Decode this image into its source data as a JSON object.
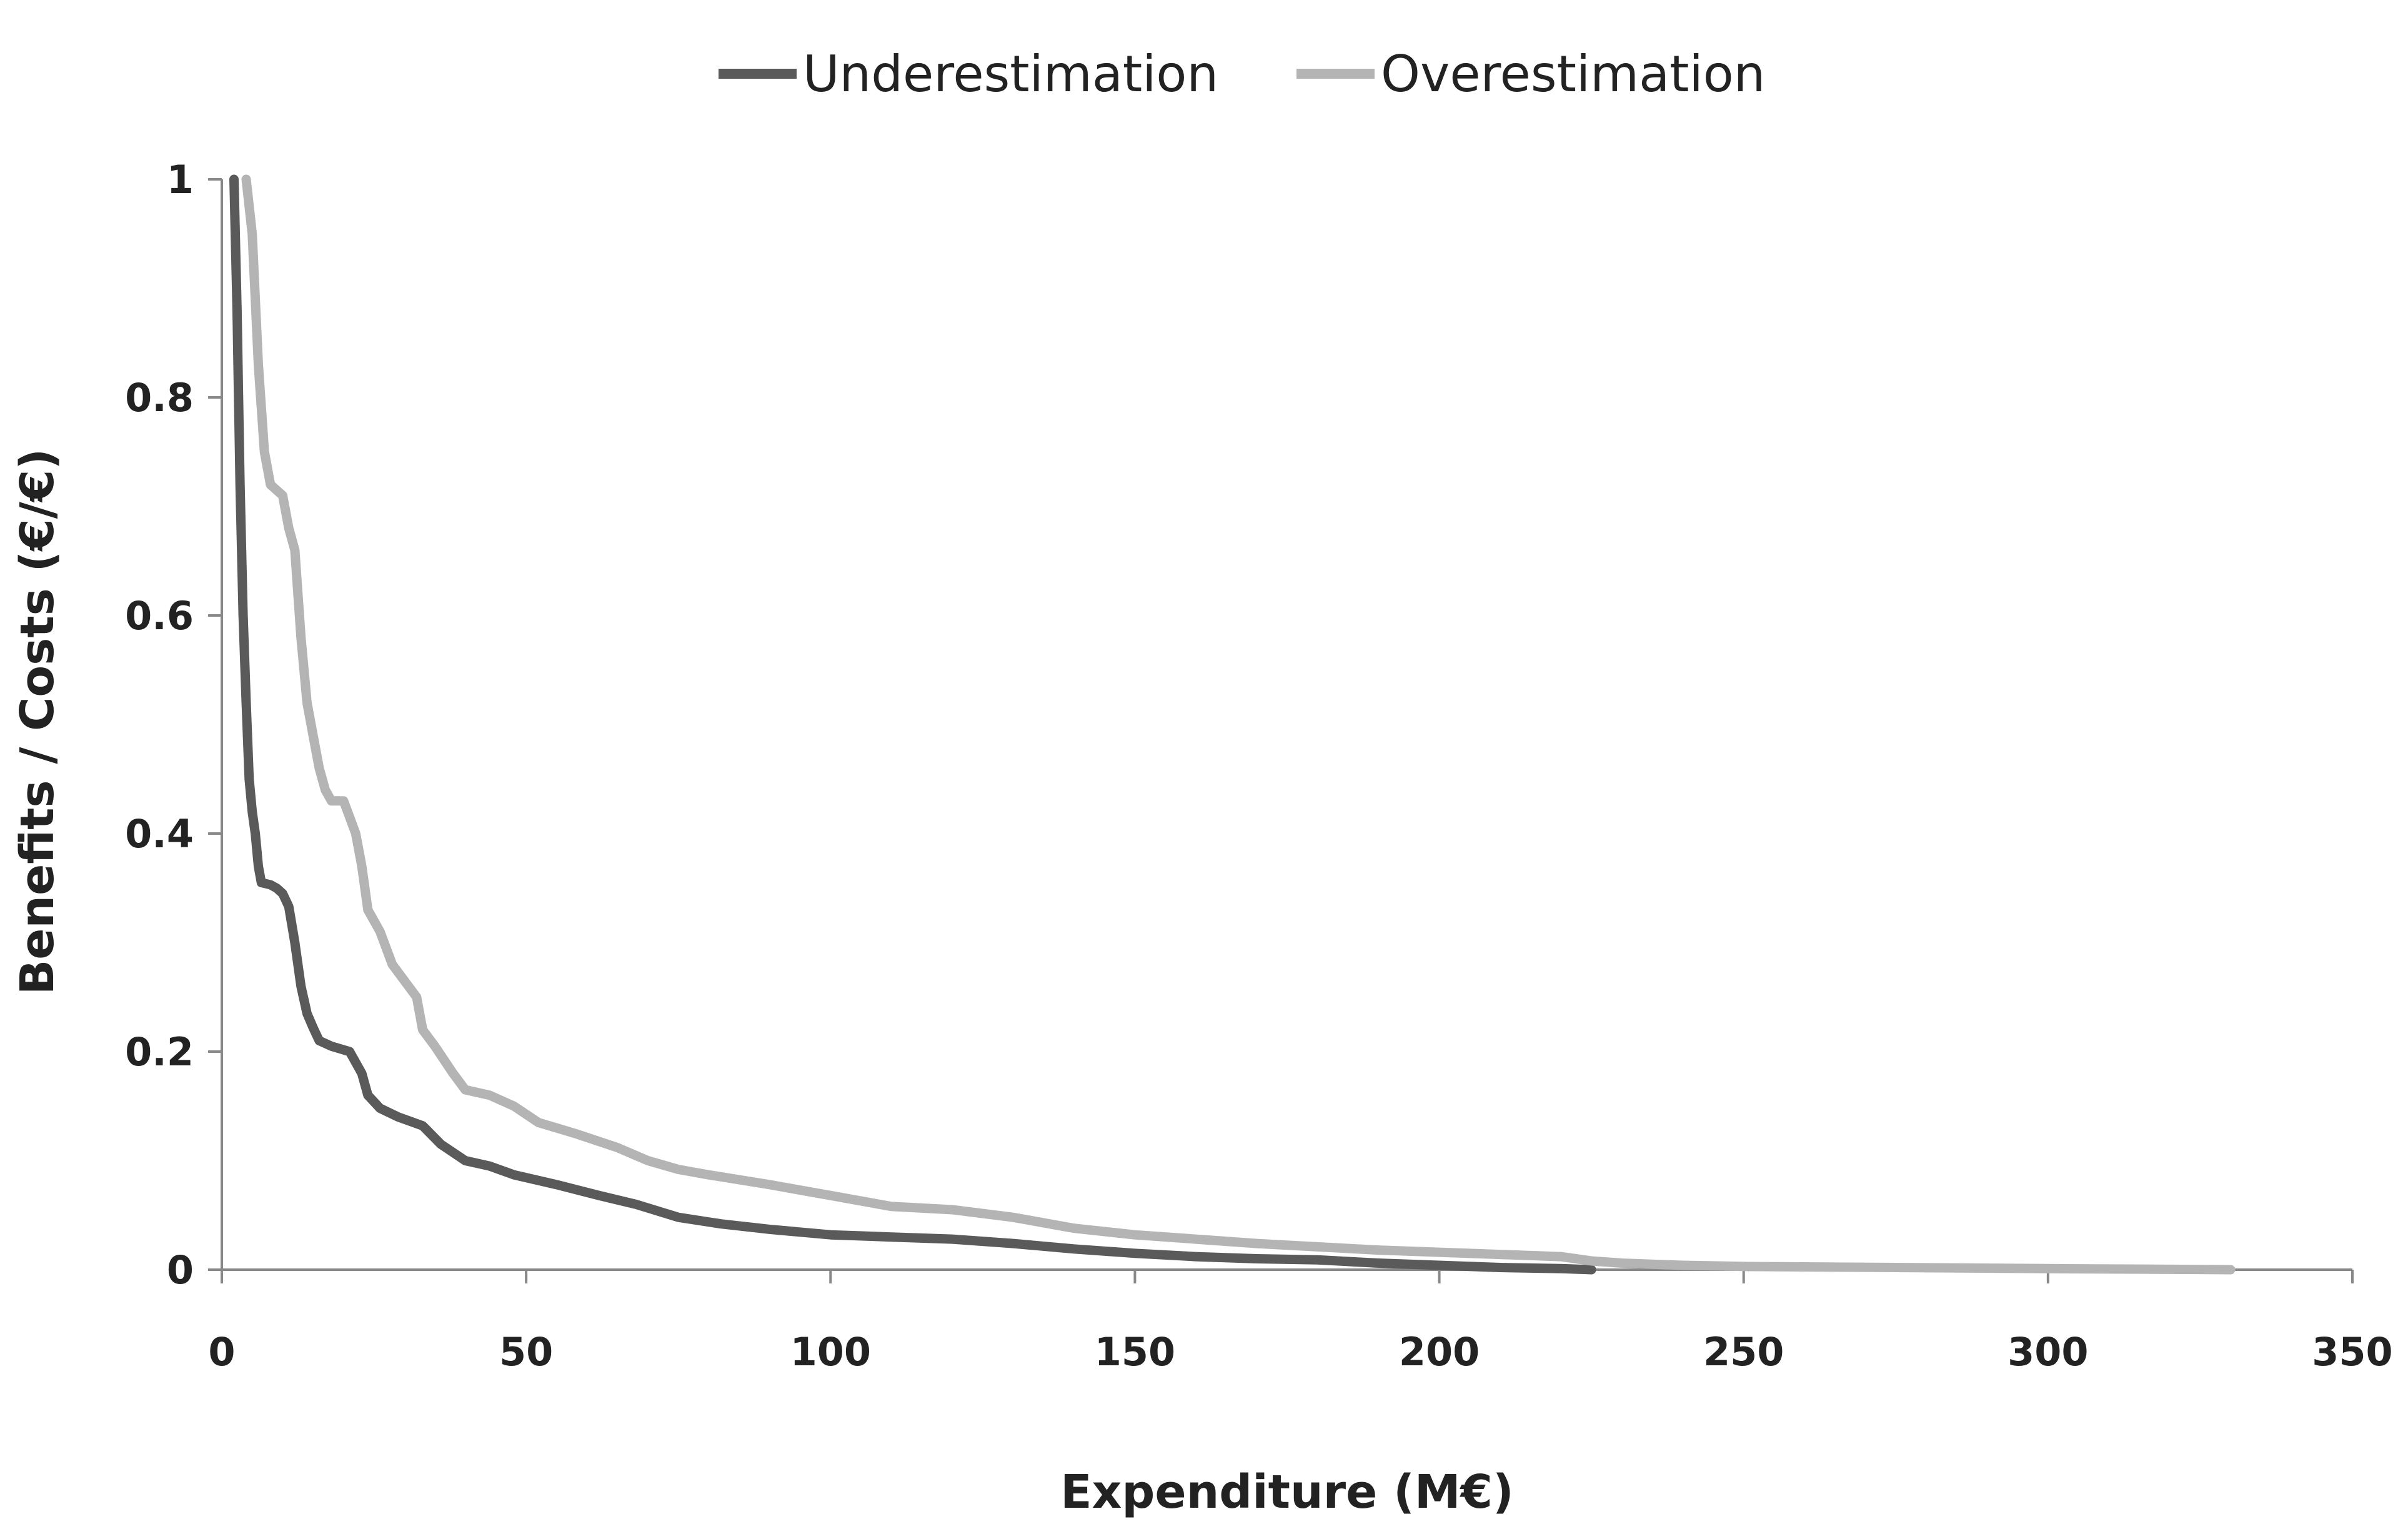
{
  "chart_data": {
    "type": "line",
    "title": "",
    "xlabel": "Expenditure (M€)",
    "ylabel": "Benefits / Costs (€/€)",
    "xlim": [
      0,
      350
    ],
    "ylim": [
      0,
      1
    ],
    "x_ticks": [
      "0",
      "50",
      "100",
      "150",
      "200",
      "250",
      "300",
      "350"
    ],
    "y_ticks": [
      "0",
      "0.2",
      "0.4",
      "0.6",
      "0.8",
      "1"
    ],
    "grid": false,
    "legend": "top",
    "series": [
      {
        "name": "Underestimation",
        "color": "#5a5a5a",
        "points": [
          [
            2,
            1.0
          ],
          [
            2.5,
            0.88
          ],
          [
            3,
            0.72
          ],
          [
            3.5,
            0.6
          ],
          [
            4,
            0.52
          ],
          [
            4.5,
            0.45
          ],
          [
            5,
            0.42
          ],
          [
            5.5,
            0.4
          ],
          [
            6,
            0.37
          ],
          [
            6.5,
            0.355
          ],
          [
            8,
            0.353
          ],
          [
            9,
            0.35
          ],
          [
            10,
            0.345
          ],
          [
            11,
            0.333
          ],
          [
            12,
            0.3
          ],
          [
            13,
            0.26
          ],
          [
            14,
            0.235
          ],
          [
            15,
            0.222
          ],
          [
            16,
            0.21
          ],
          [
            18,
            0.205
          ],
          [
            21,
            0.2
          ],
          [
            23,
            0.18
          ],
          [
            24,
            0.16
          ],
          [
            26,
            0.148
          ],
          [
            29,
            0.14
          ],
          [
            33,
            0.132
          ],
          [
            36,
            0.115
          ],
          [
            40,
            0.1
          ],
          [
            44,
            0.095
          ],
          [
            48,
            0.087
          ],
          [
            55,
            0.078
          ],
          [
            62,
            0.068
          ],
          [
            68,
            0.06
          ],
          [
            75,
            0.048
          ],
          [
            82,
            0.042
          ],
          [
            90,
            0.037
          ],
          [
            100,
            0.032
          ],
          [
            110,
            0.03
          ],
          [
            120,
            0.028
          ],
          [
            130,
            0.024
          ],
          [
            140,
            0.019
          ],
          [
            150,
            0.015
          ],
          [
            160,
            0.012
          ],
          [
            170,
            0.01
          ],
          [
            180,
            0.009
          ],
          [
            190,
            0.006
          ],
          [
            200,
            0.004
          ],
          [
            210,
            0.002
          ],
          [
            220,
            0.001
          ],
          [
            225,
            0.0
          ]
        ]
      },
      {
        "name": "Overestimation",
        "color": "#b4b4b4",
        "points": [
          [
            4,
            1.0
          ],
          [
            5,
            0.95
          ],
          [
            6,
            0.83
          ],
          [
            7,
            0.75
          ],
          [
            8,
            0.72
          ],
          [
            10,
            0.71
          ],
          [
            11,
            0.68
          ],
          [
            12,
            0.66
          ],
          [
            13,
            0.58
          ],
          [
            14,
            0.52
          ],
          [
            15,
            0.49
          ],
          [
            16,
            0.46
          ],
          [
            17,
            0.44
          ],
          [
            18,
            0.43
          ],
          [
            20,
            0.43
          ],
          [
            22,
            0.4
          ],
          [
            23,
            0.37
          ],
          [
            24,
            0.33
          ],
          [
            26,
            0.31
          ],
          [
            28,
            0.28
          ],
          [
            30,
            0.265
          ],
          [
            32,
            0.25
          ],
          [
            33,
            0.22
          ],
          [
            35,
            0.205
          ],
          [
            38,
            0.18
          ],
          [
            40,
            0.165
          ],
          [
            44,
            0.16
          ],
          [
            48,
            0.15
          ],
          [
            52,
            0.135
          ],
          [
            58,
            0.125
          ],
          [
            65,
            0.112
          ],
          [
            70,
            0.1
          ],
          [
            75,
            0.092
          ],
          [
            80,
            0.087
          ],
          [
            90,
            0.078
          ],
          [
            100,
            0.068
          ],
          [
            110,
            0.058
          ],
          [
            120,
            0.055
          ],
          [
            130,
            0.048
          ],
          [
            140,
            0.038
          ],
          [
            150,
            0.032
          ],
          [
            160,
            0.028
          ],
          [
            170,
            0.024
          ],
          [
            180,
            0.021
          ],
          [
            190,
            0.018
          ],
          [
            200,
            0.016
          ],
          [
            210,
            0.014
          ],
          [
            220,
            0.012
          ],
          [
            225,
            0.008
          ],
          [
            230,
            0.006
          ],
          [
            240,
            0.004
          ],
          [
            250,
            0.003
          ],
          [
            275,
            0.002
          ],
          [
            300,
            0.001
          ],
          [
            330,
            0.0
          ]
        ]
      }
    ]
  }
}
